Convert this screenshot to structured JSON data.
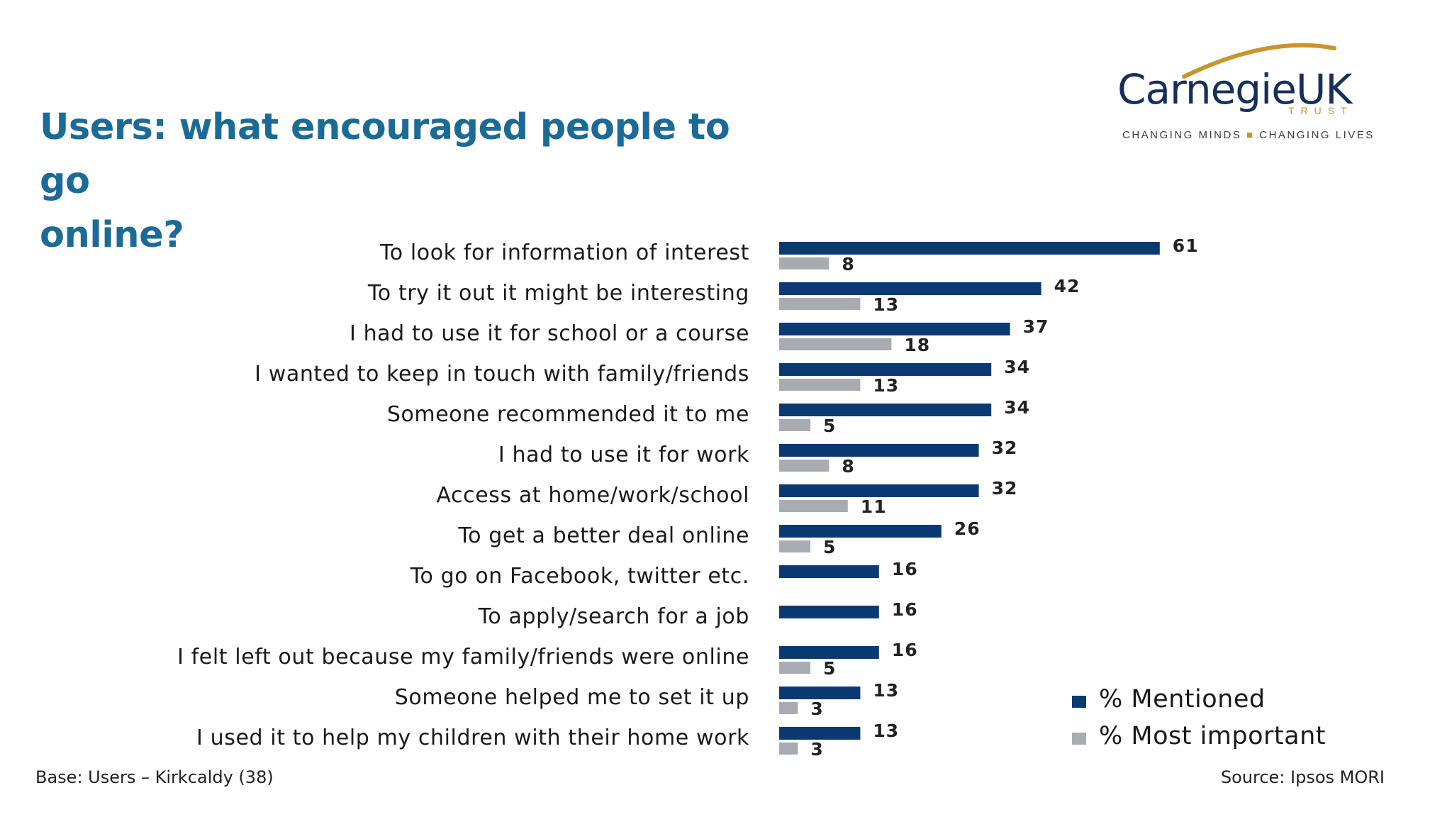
{
  "header": {
    "title_line1": "Users: what encouraged people to go",
    "title_line2": "online?"
  },
  "logo": {
    "name": "CarnegieUK",
    "trust": "TRUST",
    "tagline_left": "CHANGING MINDS",
    "tagline_right": "CHANGING LIVES"
  },
  "colors": {
    "title": "#1b6b96",
    "mentioned": "#0b3a73",
    "most_important": "#a8acb2",
    "logo_gold": "#c8952d"
  },
  "chart_data": {
    "type": "bar",
    "orientation": "horizontal",
    "title": "Users: what encouraged people to go online?",
    "categories": [
      "To look for information of interest",
      "To try it out it might be interesting",
      "I had to use it for school or a course",
      "I wanted to keep in touch with family/friends",
      "Someone recommended it to me",
      "I had to use it for work",
      "Access at home/work/school",
      "To get a better deal  online",
      "To go on Facebook, twitter etc.",
      "To apply/search for a job",
      "I felt left out because my family/friends were online",
      "Someone helped me to set it up",
      "I used it to help my children with their home work"
    ],
    "series": [
      {
        "name": "% Mentioned",
        "values": [
          61,
          42,
          37,
          34,
          34,
          32,
          32,
          26,
          16,
          16,
          16,
          13,
          13
        ]
      },
      {
        "name": "% Most important",
        "values": [
          8,
          13,
          18,
          13,
          5,
          8,
          11,
          5,
          null,
          null,
          5,
          3,
          3
        ]
      }
    ],
    "xlim": [
      0,
      100
    ],
    "grid": false,
    "legend_position": "bottom-right"
  },
  "legend": {
    "mentioned": "% Mentioned",
    "most_important": "% Most important"
  },
  "footer": {
    "base": "Base: Users – Kirkcaldy (38)",
    "source": "Source: Ipsos MORI"
  }
}
